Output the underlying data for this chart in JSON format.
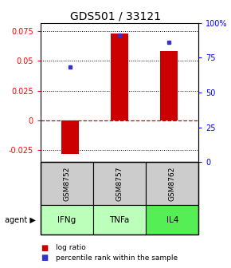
{
  "title": "GDS501 / 33121",
  "samples": [
    "GSM8752",
    "GSM8757",
    "GSM8762"
  ],
  "agents": [
    "IFNg",
    "TNFa",
    "IL4"
  ],
  "log_ratios": [
    -0.028,
    0.073,
    0.058
  ],
  "percentile_ranks": [
    0.68,
    0.91,
    0.86
  ],
  "ylim_left": [
    -0.035,
    0.082
  ],
  "ylim_right_ticks": [
    0,
    25,
    50,
    75,
    100
  ],
  "yticks_left": [
    -0.025,
    0.0,
    0.025,
    0.05,
    0.075
  ],
  "ytick_labels_left": [
    "-0.025",
    "0",
    "0.025",
    "0.05",
    "0.075"
  ],
  "ytick_labels_right": [
    "0",
    "25",
    "50",
    "75",
    "100%"
  ],
  "bar_color": "#cc0000",
  "dot_color": "#3333cc",
  "zero_line_color": "#cc0000",
  "agent_colors_map": {
    "IFNg": "#bbffbb",
    "TNFa": "#bbffbb",
    "IL4": "#55ee55"
  },
  "sample_bg_color": "#cccccc",
  "bar_width": 0.35,
  "title_fontsize": 10
}
